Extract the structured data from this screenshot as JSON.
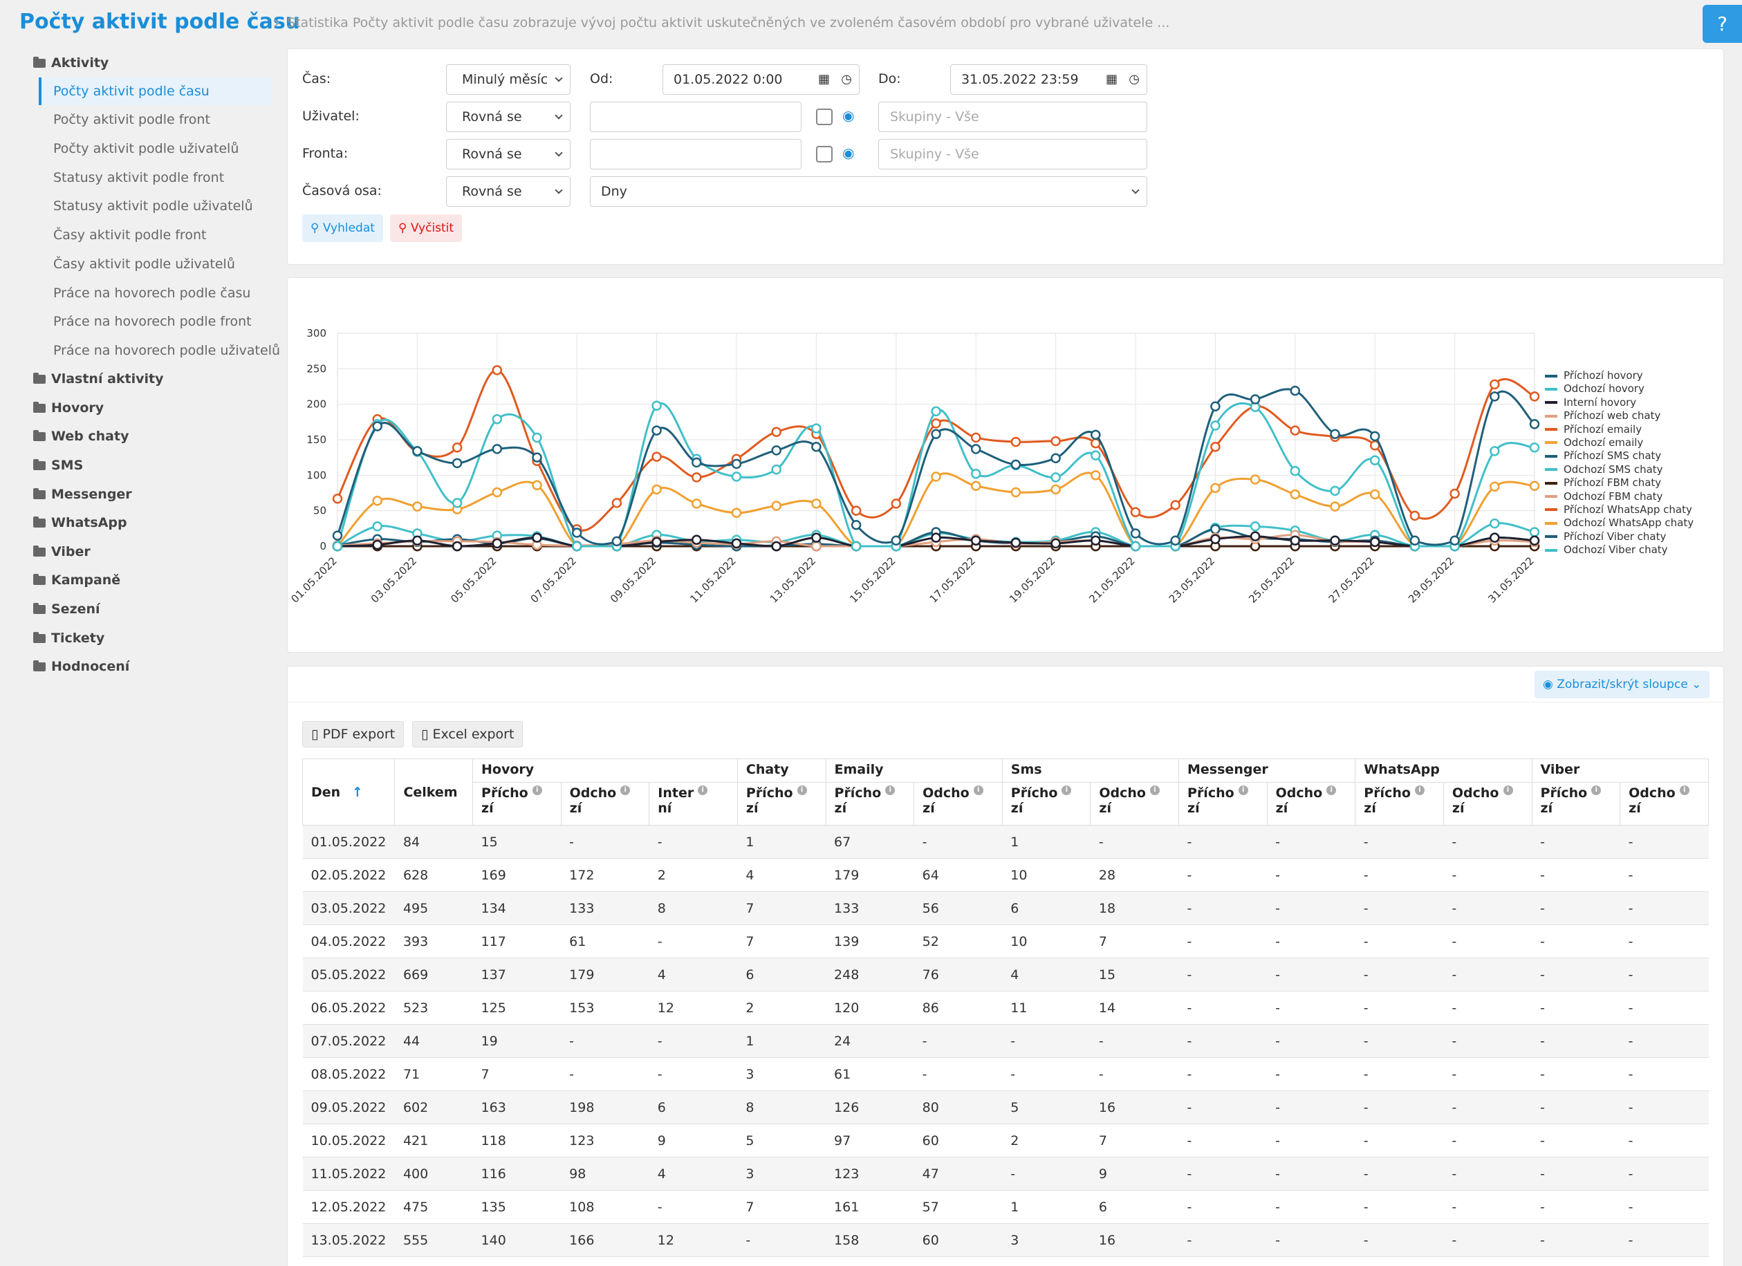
{
  "header": {
    "title": "Počty aktivit podle času",
    "description": "Statistika Počty aktivit podle času zobrazuje vývoj počtu aktivit uskutečněných ve zvoleném časovém období pro vybrané uživatele ...",
    "help": "?"
  },
  "sidebar": {
    "groups": [
      "Aktivity",
      "Vlastní aktivity",
      "Hovory",
      "Web chaty",
      "SMS",
      "Messenger",
      "WhatsApp",
      "Viber",
      "Kampaně",
      "Sezení",
      "Tickety",
      "Hodnocení"
    ],
    "items": [
      "Počty aktivit podle času",
      "Počty aktivit podle front",
      "Počty aktivit podle uživatelů",
      "Statusy aktivit podle front",
      "Statusy aktivit podle uživatelů",
      "Časy aktivit podle front",
      "Časy aktivit podle uživatelů",
      "Práce na hovorech podle času",
      "Práce na hovorech podle front",
      "Práce na hovorech podle uživatelů"
    ]
  },
  "filters": {
    "cas_label": "Čas:",
    "cas_value": "Minulý měsíc",
    "od_label": "Od:",
    "od_value": "01.05.2022 0:00",
    "do_label": "Do:",
    "do_value": "31.05.2022 23:59",
    "uzivatel_label": "Uživatel:",
    "uzivatel_op": "Rovná se",
    "uzivatel_groups": "Skupiny - Vše",
    "fronta_label": "Fronta:",
    "fronta_op": "Rovná se",
    "fronta_groups": "Skupiny - Vše",
    "osa_label": "Časová osa:",
    "osa_op": "Rovná se",
    "osa_value": "Dny",
    "search": "Vyhledat",
    "clear": "Vyčistit"
  },
  "toolbar": {
    "columns": "Zobrazit/skrýt sloupce",
    "pdf": "PDF export",
    "excel": "Excel export"
  },
  "chart_data": {
    "type": "line",
    "ylim": [
      0,
      300
    ],
    "yticks": [
      0,
      50,
      100,
      150,
      200,
      250,
      300
    ],
    "x": [
      "01.05.2022",
      "02.05.2022",
      "03.05.2022",
      "04.05.2022",
      "05.05.2022",
      "06.05.2022",
      "07.05.2022",
      "08.05.2022",
      "09.05.2022",
      "10.05.2022",
      "11.05.2022",
      "12.05.2022",
      "13.05.2022",
      "14.05.2022",
      "15.05.2022",
      "16.05.2022",
      "17.05.2022",
      "18.05.2022",
      "19.05.2022",
      "20.05.2022",
      "21.05.2022",
      "22.05.2022",
      "23.05.2022",
      "24.05.2022",
      "25.05.2022",
      "26.05.2022",
      "27.05.2022",
      "28.05.2022",
      "29.05.2022",
      "30.05.2022",
      "31.05.2022"
    ],
    "xtick_labels": [
      "01.05.2022",
      "03.05.2022",
      "05.05.2022",
      "07.05.2022",
      "09.05.2022",
      "11.05.2022",
      "13.05.2022",
      "15.05.2022",
      "17.05.2022",
      "19.05.2022",
      "21.05.2022",
      "23.05.2022",
      "25.05.2022",
      "27.05.2022",
      "29.05.2022",
      "31.05.2022"
    ],
    "legend": "right",
    "series": [
      {
        "name": "Příchozí hovory",
        "color": "#1f5f7a",
        "values": [
          15,
          169,
          134,
          117,
          137,
          125,
          19,
          7,
          163,
          118,
          116,
          135,
          140,
          30,
          8,
          158,
          137,
          115,
          124,
          157,
          18,
          8,
          197,
          207,
          219,
          158,
          155,
          8,
          8,
          211,
          172
        ]
      },
      {
        "name": "Odchozí hovory",
        "color": "#40bfc8",
        "values": [
          0,
          172,
          133,
          61,
          179,
          153,
          0,
          0,
          198,
          123,
          98,
          108,
          166,
          0,
          0,
          190,
          102,
          114,
          97,
          128,
          0,
          0,
          170,
          196,
          106,
          78,
          121,
          0,
          0,
          134,
          139
        ]
      },
      {
        "name": "Interní hovory",
        "color": "#202030",
        "values": [
          0,
          2,
          8,
          0,
          4,
          12,
          0,
          0,
          6,
          9,
          4,
          0,
          12,
          0,
          0,
          12,
          8,
          5,
          4,
          8,
          0,
          0,
          10,
          14,
          8,
          8,
          6,
          0,
          0,
          12,
          8
        ]
      },
      {
        "name": "Příchozí web chaty",
        "color": "#e0a080",
        "values": [
          1,
          4,
          7,
          7,
          6,
          2,
          1,
          3,
          8,
          5,
          3,
          7,
          0,
          0,
          0,
          6,
          10,
          4,
          6,
          8,
          0,
          0,
          12,
          10,
          16,
          7,
          6,
          0,
          0,
          8,
          6
        ]
      },
      {
        "name": "Příchozí emaily",
        "color": "#e05a20",
        "values": [
          67,
          179,
          133,
          139,
          248,
          120,
          24,
          61,
          126,
          97,
          123,
          161,
          158,
          50,
          60,
          173,
          153,
          147,
          148,
          145,
          48,
          58,
          140,
          197,
          163,
          154,
          142,
          43,
          74,
          228,
          211
        ]
      },
      {
        "name": "Odchozí emaily",
        "color": "#f0a030",
        "values": [
          0,
          64,
          56,
          52,
          76,
          86,
          0,
          0,
          80,
          60,
          47,
          57,
          60,
          0,
          0,
          98,
          85,
          76,
          80,
          100,
          0,
          0,
          82,
          94,
          73,
          56,
          73,
          0,
          0,
          84,
          85
        ]
      },
      {
        "name": "Příchozí SMS chaty",
        "color": "#1f5f7a",
        "values": [
          1,
          10,
          6,
          10,
          4,
          11,
          0,
          0,
          5,
          2,
          0,
          1,
          3,
          0,
          0,
          20,
          8,
          4,
          6,
          14,
          0,
          0,
          24,
          12,
          10,
          6,
          8,
          0,
          0,
          12,
          8
        ]
      },
      {
        "name": "Odchozí SMS chaty",
        "color": "#40bfc8",
        "values": [
          0,
          28,
          18,
          7,
          15,
          14,
          0,
          0,
          16,
          7,
          9,
          6,
          16,
          0,
          0,
          18,
          10,
          6,
          8,
          20,
          0,
          0,
          26,
          28,
          22,
          8,
          16,
          0,
          0,
          32,
          20
        ]
      },
      {
        "name": "Příchozí FBM chaty",
        "color": "#402010",
        "values": [
          0,
          0,
          0,
          0,
          0,
          0,
          0,
          0,
          0,
          0,
          0,
          0,
          0,
          0,
          0,
          0,
          0,
          0,
          0,
          0,
          0,
          0,
          0,
          0,
          0,
          0,
          0,
          0,
          0,
          0,
          0
        ]
      },
      {
        "name": "Odchozí FBM chaty",
        "color": "#e0a080",
        "values": [
          0,
          0,
          0,
          0,
          0,
          0,
          0,
          0,
          0,
          0,
          0,
          0,
          0,
          0,
          0,
          0,
          0,
          0,
          0,
          0,
          0,
          0,
          0,
          0,
          0,
          0,
          0,
          0,
          0,
          0,
          0
        ]
      },
      {
        "name": "Příchozí WhatsApp chaty",
        "color": "#e05a20",
        "values": [
          0,
          0,
          0,
          0,
          0,
          0,
          0,
          0,
          0,
          0,
          0,
          0,
          0,
          0,
          0,
          0,
          0,
          0,
          0,
          0,
          0,
          0,
          0,
          0,
          0,
          0,
          0,
          0,
          0,
          0,
          0
        ]
      },
      {
        "name": "Odchozí WhatsApp chaty",
        "color": "#f0a030",
        "values": [
          0,
          0,
          0,
          0,
          0,
          0,
          0,
          0,
          0,
          0,
          0,
          0,
          0,
          0,
          0,
          0,
          0,
          0,
          0,
          0,
          0,
          0,
          0,
          0,
          0,
          0,
          0,
          0,
          0,
          0,
          0
        ]
      },
      {
        "name": "Příchozí Viber chaty",
        "color": "#1f5f7a",
        "values": [
          0,
          0,
          0,
          0,
          0,
          0,
          0,
          0,
          0,
          0,
          0,
          0,
          0,
          0,
          0,
          0,
          0,
          0,
          0,
          0,
          0,
          0,
          0,
          0,
          0,
          0,
          0,
          0,
          0,
          0,
          0
        ]
      },
      {
        "name": "Odchozí Viber chaty",
        "color": "#40bfc8",
        "values": [
          0,
          0,
          0,
          0,
          0,
          0,
          0,
          0,
          0,
          0,
          0,
          0,
          0,
          0,
          0,
          0,
          0,
          0,
          0,
          0,
          0,
          0,
          0,
          0,
          0,
          0,
          0,
          0,
          0,
          0,
          0
        ]
      }
    ]
  },
  "table": {
    "den": "Den",
    "celkem": "Celkem",
    "groups": [
      {
        "label": "Hovory",
        "subs": [
          [
            "Přícho",
            "zí"
          ],
          [
            "Odcho",
            "zí"
          ],
          [
            "Inter",
            "ní"
          ]
        ]
      },
      {
        "label": "Chaty",
        "subs": [
          [
            "Přícho",
            "zí"
          ]
        ]
      },
      {
        "label": "Emaily",
        "subs": [
          [
            "Přícho",
            "zí"
          ],
          [
            "Odcho",
            "zí"
          ]
        ]
      },
      {
        "label": "Sms",
        "subs": [
          [
            "Přícho",
            "zí"
          ],
          [
            "Odcho",
            "zí"
          ]
        ]
      },
      {
        "label": "Messenger",
        "subs": [
          [
            "Přícho",
            "zí"
          ],
          [
            "Odcho",
            "zí"
          ]
        ]
      },
      {
        "label": "WhatsApp",
        "subs": [
          [
            "Přícho",
            "zí"
          ],
          [
            "Odcho",
            "zí"
          ]
        ]
      },
      {
        "label": "Viber",
        "subs": [
          [
            "Přícho",
            "zí"
          ],
          [
            "Odcho",
            "zí"
          ]
        ]
      }
    ],
    "rows": [
      [
        "01.05.2022",
        "84",
        "15",
        "-",
        "-",
        "1",
        "67",
        "-",
        "1",
        "-",
        "-",
        "-",
        "-",
        "-",
        "-",
        "-"
      ],
      [
        "02.05.2022",
        "628",
        "169",
        "172",
        "2",
        "4",
        "179",
        "64",
        "10",
        "28",
        "-",
        "-",
        "-",
        "-",
        "-",
        "-"
      ],
      [
        "03.05.2022",
        "495",
        "134",
        "133",
        "8",
        "7",
        "133",
        "56",
        "6",
        "18",
        "-",
        "-",
        "-",
        "-",
        "-",
        "-"
      ],
      [
        "04.05.2022",
        "393",
        "117",
        "61",
        "-",
        "7",
        "139",
        "52",
        "10",
        "7",
        "-",
        "-",
        "-",
        "-",
        "-",
        "-"
      ],
      [
        "05.05.2022",
        "669",
        "137",
        "179",
        "4",
        "6",
        "248",
        "76",
        "4",
        "15",
        "-",
        "-",
        "-",
        "-",
        "-",
        "-"
      ],
      [
        "06.05.2022",
        "523",
        "125",
        "153",
        "12",
        "2",
        "120",
        "86",
        "11",
        "14",
        "-",
        "-",
        "-",
        "-",
        "-",
        "-"
      ],
      [
        "07.05.2022",
        "44",
        "19",
        "-",
        "-",
        "1",
        "24",
        "-",
        "-",
        "-",
        "-",
        "-",
        "-",
        "-",
        "-",
        "-"
      ],
      [
        "08.05.2022",
        "71",
        "7",
        "-",
        "-",
        "3",
        "61",
        "-",
        "-",
        "-",
        "-",
        "-",
        "-",
        "-",
        "-",
        "-"
      ],
      [
        "09.05.2022",
        "602",
        "163",
        "198",
        "6",
        "8",
        "126",
        "80",
        "5",
        "16",
        "-",
        "-",
        "-",
        "-",
        "-",
        "-"
      ],
      [
        "10.05.2022",
        "421",
        "118",
        "123",
        "9",
        "5",
        "97",
        "60",
        "2",
        "7",
        "-",
        "-",
        "-",
        "-",
        "-",
        "-"
      ],
      [
        "11.05.2022",
        "400",
        "116",
        "98",
        "4",
        "3",
        "123",
        "47",
        "-",
        "9",
        "-",
        "-",
        "-",
        "-",
        "-",
        "-"
      ],
      [
        "12.05.2022",
        "475",
        "135",
        "108",
        "-",
        "7",
        "161",
        "57",
        "1",
        "6",
        "-",
        "-",
        "-",
        "-",
        "-",
        "-"
      ],
      [
        "13.05.2022",
        "555",
        "140",
        "166",
        "12",
        "-",
        "158",
        "60",
        "3",
        "16",
        "-",
        "-",
        "-",
        "-",
        "-",
        "-"
      ]
    ]
  }
}
